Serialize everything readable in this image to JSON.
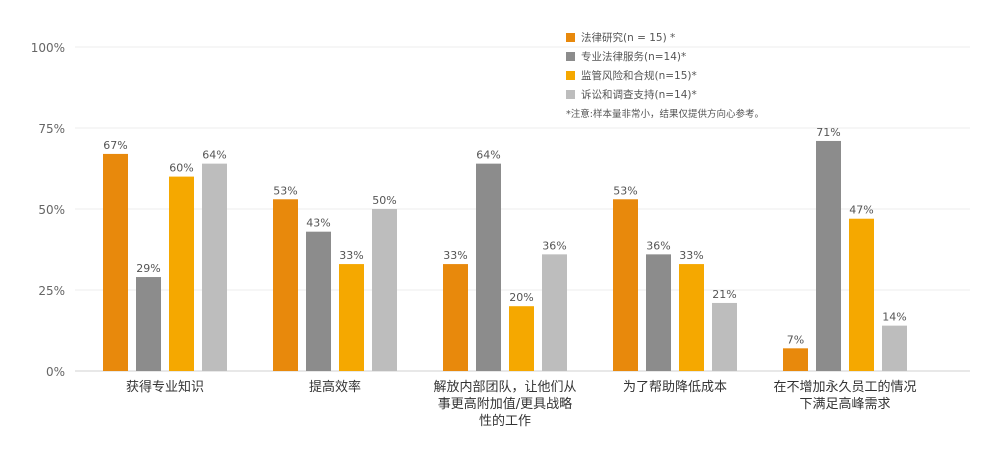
{
  "chart_data": {
    "type": "bar",
    "categories": [
      [
        "获得专业知识"
      ],
      [
        "提高效率"
      ],
      [
        "解放内部团队，让他们从",
        "事更高附加值/更具战略",
        "性的工作"
      ],
      [
        "为了帮助降低成本"
      ],
      [
        "在不增加永久员工的情况",
        "下满足高峰需求"
      ]
    ],
    "series": [
      {
        "name": "法律研究(n = 15) *",
        "color": "#e8890c",
        "values": [
          67,
          53,
          33,
          53,
          7
        ]
      },
      {
        "name": "专业法律服务(n=14)*",
        "color": "#8c8c8c",
        "values": [
          29,
          43,
          64,
          36,
          71
        ]
      },
      {
        "name": "监管风险和合规(n=15)*",
        "color": "#f5a800",
        "values": [
          60,
          33,
          20,
          33,
          47
        ]
      },
      {
        "name": "诉讼和调查支持(n=14)*",
        "color": "#bdbdbd",
        "values": [
          64,
          50,
          36,
          21,
          14
        ]
      }
    ],
    "yticks": [
      "0%",
      "25%",
      "50%",
      "75%",
      "100%"
    ],
    "ylim": [
      0,
      100
    ],
    "value_suffix": "%",
    "grid": true,
    "legend_position": "top-right",
    "note": "*注意:样本量非常小，结果仅提供方向心参考。"
  }
}
